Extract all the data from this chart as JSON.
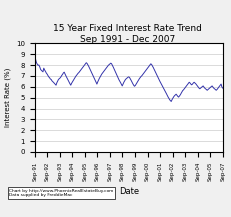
{
  "title_line1": "15 Year Fixed Interest Rate Trend",
  "title_line2": "Sep 1991 - Dec 2007",
  "xlabel": "Date",
  "ylabel": "Interest Rate (%)",
  "ylim": [
    0,
    10
  ],
  "yticks": [
    0,
    1,
    2,
    3,
    4,
    5,
    6,
    7,
    8,
    9,
    10
  ],
  "line_color": "#3333aa",
  "bg_color": "#f0f0f0",
  "chart_bg": "#ffffff",
  "footer_line1": "Chart by http://www.PhoenixRealEstateBuy.com",
  "footer_line2": "Data supplied by FreddieMac",
  "x_tick_labels": [
    "Sep-91",
    "Sep-92",
    "Sep-93",
    "Sep-94",
    "Sep-95",
    "Sep-96",
    "Sep-97",
    "Sep-98",
    "Sep-99",
    "Sep-00",
    "Sep-01",
    "Sep-02",
    "Sep-03",
    "Sep-04",
    "Sep-05",
    "Sep-07"
  ],
  "x_tick_pos": [
    0,
    1,
    2,
    3,
    4,
    5,
    6,
    7,
    8,
    9,
    10,
    11,
    12,
    13,
    14,
    15
  ],
  "rates": [
    8.76,
    8.52,
    8.23,
    8.09,
    7.98,
    8.01,
    7.85,
    7.62,
    7.52,
    7.45,
    7.38,
    7.72,
    7.55,
    7.43,
    7.28,
    7.18,
    7.05,
    6.92,
    6.85,
    6.72,
    6.68,
    6.55,
    6.48,
    6.4,
    6.32,
    6.25,
    6.15,
    6.38,
    6.52,
    6.68,
    6.75,
    6.82,
    6.92,
    7.05,
    7.15,
    7.28,
    7.35,
    7.18,
    7.02,
    6.88,
    6.72,
    6.58,
    6.42,
    6.28,
    6.15,
    6.32,
    6.45,
    6.58,
    6.72,
    6.85,
    6.95,
    7.05,
    7.15,
    7.25,
    7.32,
    7.42,
    7.52,
    7.62,
    7.72,
    7.82,
    7.92,
    8.02,
    8.12,
    8.22,
    8.15,
    8.02,
    7.88,
    7.72,
    7.58,
    7.42,
    7.25,
    7.08,
    6.92,
    6.75,
    6.58,
    6.42,
    6.25,
    6.45,
    6.62,
    6.78,
    6.92,
    7.05,
    7.18,
    7.28,
    7.38,
    7.48,
    7.58,
    7.68,
    7.78,
    7.88,
    7.98,
    8.05,
    8.12,
    8.18,
    8.12,
    7.98,
    7.82,
    7.65,
    7.48,
    7.32,
    7.15,
    6.98,
    6.82,
    6.65,
    6.52,
    6.38,
    6.22,
    6.08,
    6.25,
    6.42,
    6.55,
    6.68,
    6.75,
    6.82,
    6.88,
    6.92,
    6.85,
    6.72,
    6.58,
    6.42,
    6.28,
    6.15,
    6.05,
    6.12,
    6.25,
    6.38,
    6.52,
    6.65,
    6.75,
    6.85,
    6.95,
    7.02,
    7.12,
    7.22,
    7.32,
    7.42,
    7.52,
    7.62,
    7.72,
    7.82,
    7.92,
    8.02,
    8.12,
    8.05,
    7.92,
    7.78,
    7.62,
    7.48,
    7.32,
    7.15,
    6.98,
    6.82,
    6.65,
    6.52,
    6.38,
    6.22,
    6.08,
    5.95,
    5.82,
    5.68,
    5.52,
    5.38,
    5.22,
    5.08,
    4.95,
    4.82,
    4.72,
    4.65,
    4.82,
    4.95,
    5.08,
    5.18,
    5.25,
    5.32,
    5.22,
    5.12,
    5.05,
    5.15,
    5.25,
    5.38,
    5.52,
    5.65,
    5.72,
    5.82,
    5.92,
    6.02,
    6.12,
    6.22,
    6.32,
    6.42,
    6.35,
    6.25,
    6.18,
    6.25,
    6.35,
    6.42,
    6.35,
    6.28,
    6.18,
    6.08,
    5.98,
    5.88,
    5.82,
    5.88,
    5.95,
    6.02,
    6.08,
    5.98,
    5.88,
    5.82,
    5.75,
    5.68,
    5.75,
    5.82,
    5.88,
    5.95,
    6.02,
    6.08,
    5.98,
    5.88,
    5.82,
    5.75,
    5.68,
    5.75,
    5.85,
    5.95,
    6.05,
    6.15,
    6.25,
    5.98,
    5.88
  ]
}
